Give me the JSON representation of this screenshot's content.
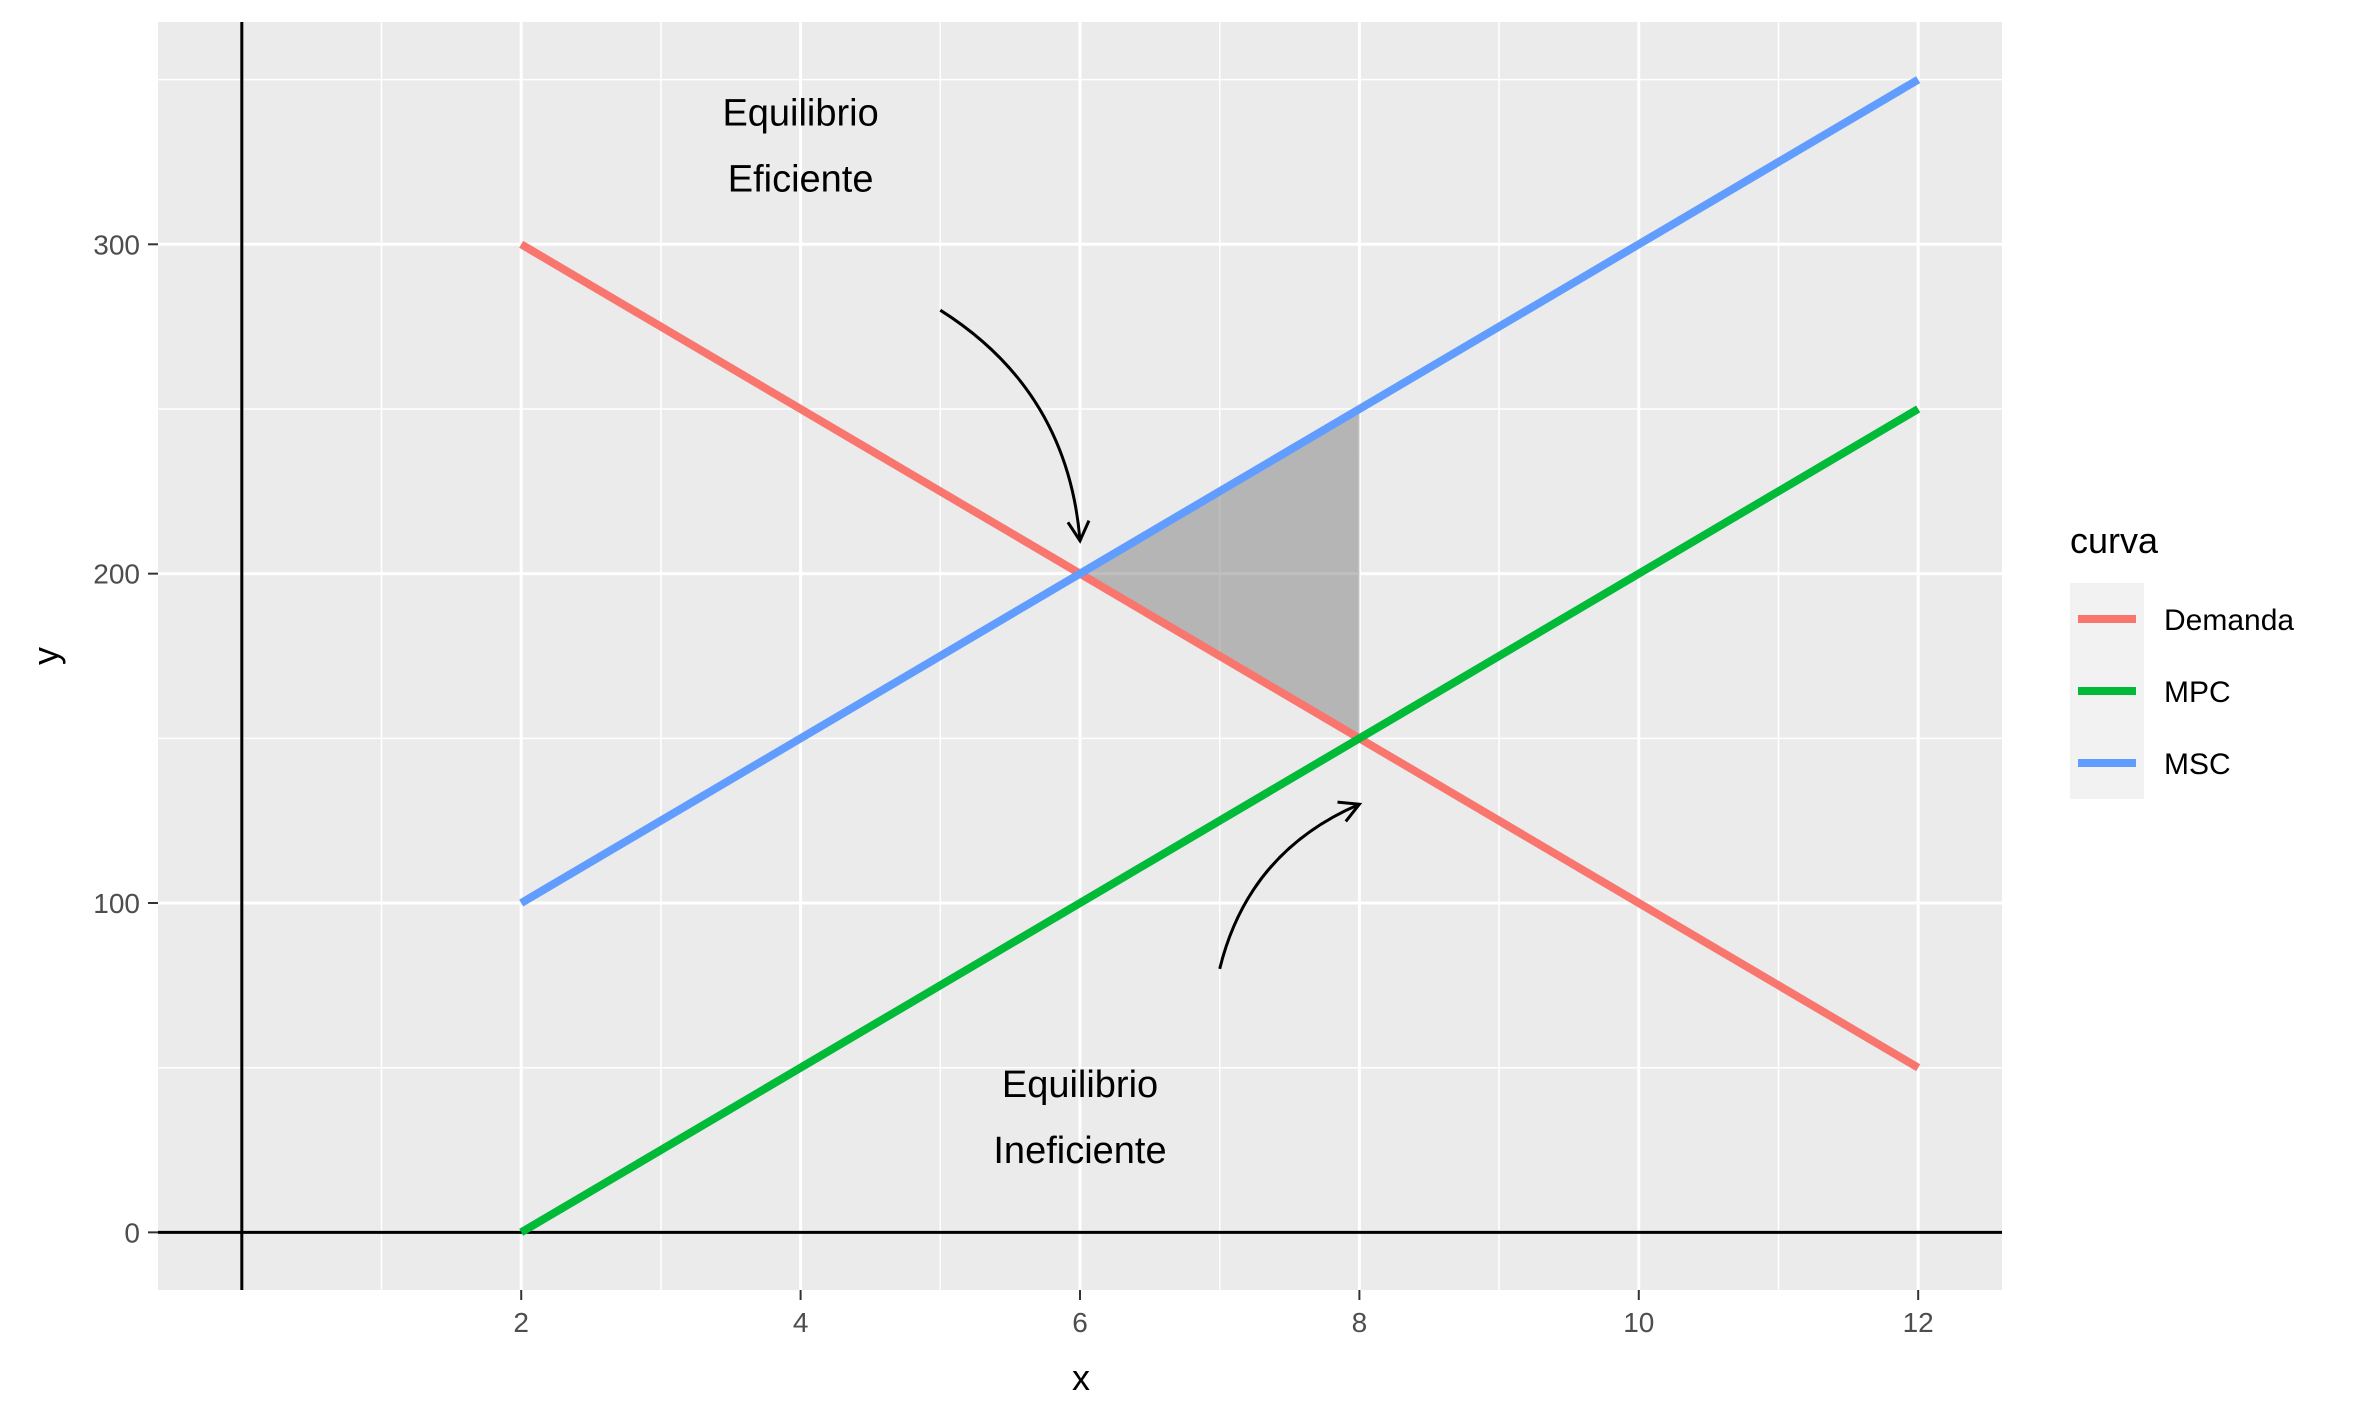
{
  "chart_data": {
    "type": "line",
    "xlabel": "x",
    "ylabel": "y",
    "xlim": [
      -0.6,
      12.6
    ],
    "ylim": [
      -17.5,
      367.5
    ],
    "x_ticks": [
      2,
      4,
      6,
      8,
      10,
      12
    ],
    "y_ticks": [
      0,
      100,
      200,
      300
    ],
    "grid": true,
    "legend": {
      "title": "curva",
      "placement": "right",
      "entries": [
        "Demanda",
        "MPC",
        "MSC"
      ]
    },
    "series": [
      {
        "name": "Demanda",
        "color": "#F8766D",
        "points": [
          [
            2,
            300
          ],
          [
            12,
            50
          ]
        ]
      },
      {
        "name": "MPC",
        "color": "#00BA38",
        "points": [
          [
            2,
            0
          ],
          [
            12,
            250
          ]
        ]
      },
      {
        "name": "MSC",
        "color": "#619CFF",
        "points": [
          [
            2,
            100
          ],
          [
            12,
            350
          ]
        ]
      }
    ],
    "shaded_region": {
      "color": "#808080",
      "points": [
        [
          6,
          200
        ],
        [
          8,
          250
        ],
        [
          8,
          150
        ]
      ]
    },
    "reference_lines": {
      "vline_x": 0,
      "hline_y": 0
    },
    "annotations": [
      {
        "lines": [
          "Equilibrio",
          "Eficiente"
        ],
        "x": 4,
        "y": 330
      },
      {
        "lines": [
          "Equilibrio",
          "Ineficiente"
        ],
        "x": 6,
        "y": 35
      }
    ],
    "arrows": [
      {
        "from": [
          5,
          280
        ],
        "to": [
          6,
          210
        ]
      },
      {
        "from": [
          7,
          80
        ],
        "to": [
          8,
          130
        ]
      }
    ]
  }
}
